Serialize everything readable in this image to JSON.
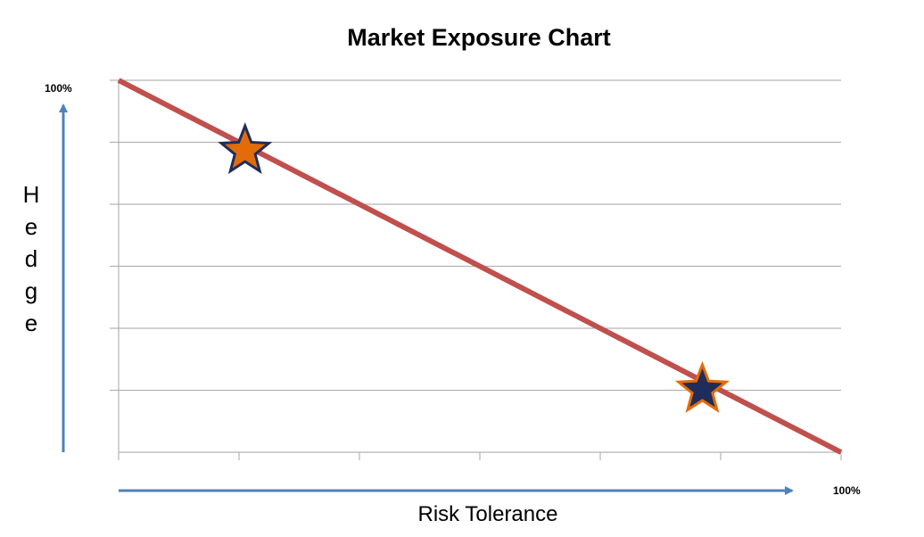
{
  "chart_data": {
    "type": "line",
    "title": "Market Exposure Chart",
    "xlabel": "Risk Tolerance",
    "ylabel": "Hedge",
    "y_max_label": "100%",
    "x_max_label": "100%",
    "xlim": [
      0,
      100
    ],
    "ylim": [
      0,
      100
    ],
    "grid": "horizontal",
    "series": [
      {
        "x": [
          0,
          100
        ],
        "y": [
          100,
          0
        ],
        "color": "#c0504d"
      }
    ],
    "markers": [
      {
        "x": 17.5,
        "y": 81.5,
        "fill": "#e36c0a",
        "stroke": "#1f2d5a"
      },
      {
        "x": 80.8,
        "y": 17.3,
        "fill": "#1f2d5a",
        "stroke": "#e36c0a"
      }
    ]
  }
}
